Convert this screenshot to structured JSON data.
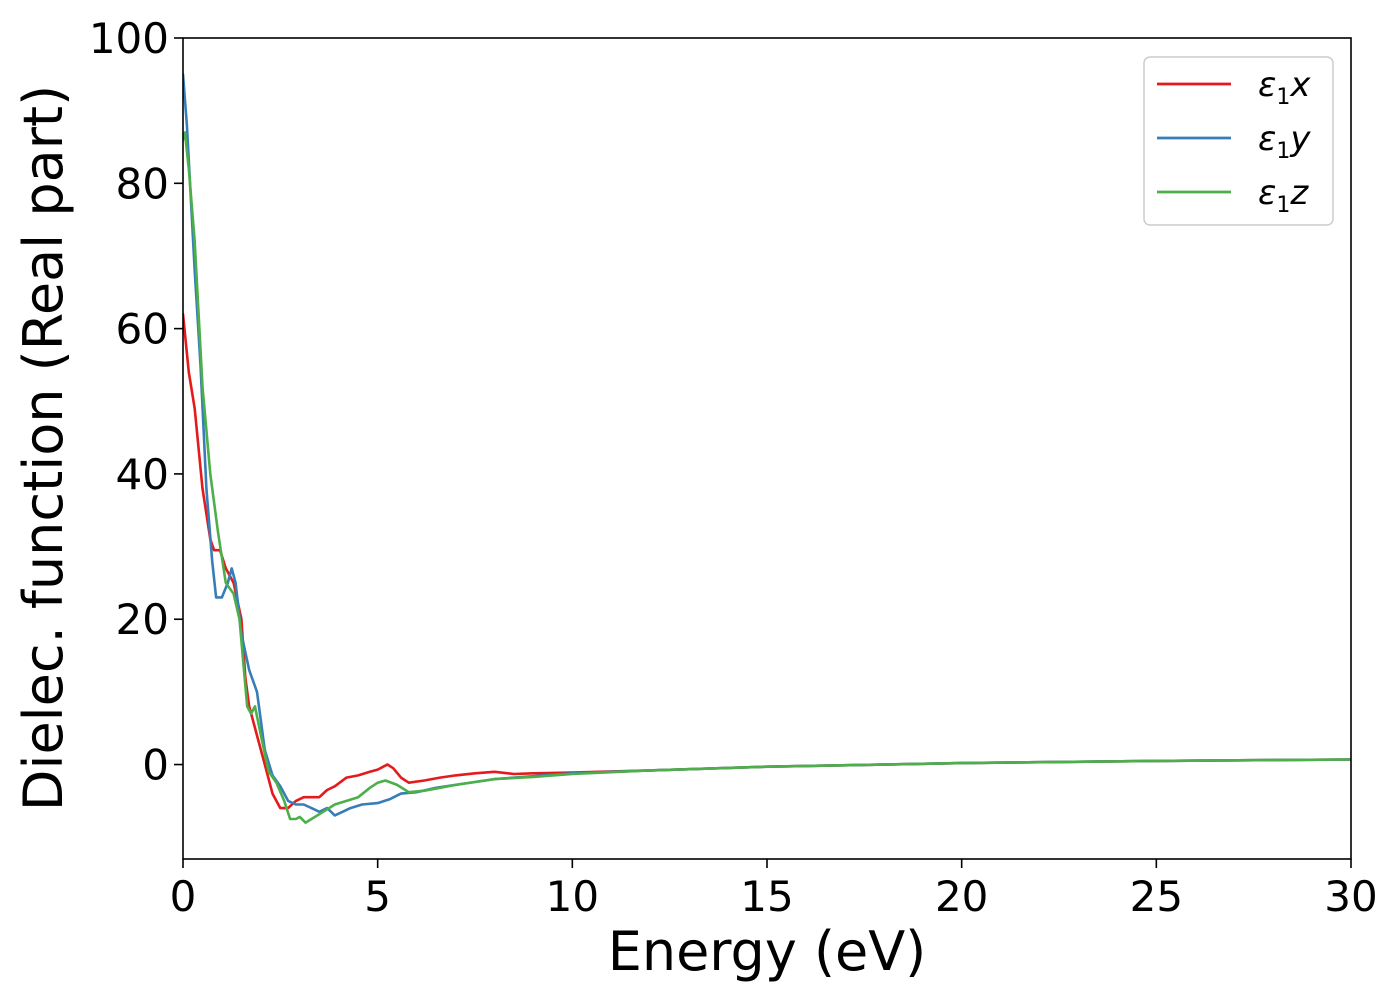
{
  "chart_data": {
    "type": "line",
    "xlabel": "Energy (eV)",
    "ylabel": "Dielec. function (Real part)",
    "xlim": [
      0,
      30
    ],
    "ylim": [
      -13,
      100
    ],
    "x_ticks": [
      0,
      5,
      10,
      15,
      20,
      25,
      30
    ],
    "y_ticks": [
      0,
      20,
      40,
      60,
      80,
      100
    ],
    "grid": false,
    "legend_position": "top-right",
    "series": [
      {
        "name": "ε1x",
        "label_base": "ε",
        "label_sub": "1",
        "label_var": "x",
        "color": "#e41a1c",
        "points": [
          [
            0,
            62
          ],
          [
            0.15,
            54
          ],
          [
            0.3,
            49
          ],
          [
            0.5,
            38
          ],
          [
            0.7,
            31
          ],
          [
            0.8,
            29.5
          ],
          [
            0.95,
            29.5
          ],
          [
            1.1,
            27
          ],
          [
            1.3,
            25
          ],
          [
            1.5,
            20
          ],
          [
            1.6,
            12
          ],
          [
            1.7,
            8
          ],
          [
            1.9,
            4
          ],
          [
            2.1,
            0
          ],
          [
            2.3,
            -4
          ],
          [
            2.5,
            -6
          ],
          [
            2.7,
            -6
          ],
          [
            2.9,
            -5
          ],
          [
            3.1,
            -4.5
          ],
          [
            3.3,
            -4.5
          ],
          [
            3.5,
            -4.5
          ],
          [
            3.7,
            -3.5
          ],
          [
            3.9,
            -3
          ],
          [
            4.2,
            -1.8
          ],
          [
            4.5,
            -1.5
          ],
          [
            4.8,
            -1
          ],
          [
            5.0,
            -0.7
          ],
          [
            5.25,
            0
          ],
          [
            5.4,
            -0.5
          ],
          [
            5.6,
            -1.8
          ],
          [
            5.8,
            -2.5
          ],
          [
            6.2,
            -2.2
          ],
          [
            6.6,
            -1.8
          ],
          [
            7,
            -1.5
          ],
          [
            7.5,
            -1.2
          ],
          [
            8,
            -1
          ],
          [
            8.5,
            -1.3
          ],
          [
            9,
            -1.2
          ],
          [
            10,
            -1.1
          ],
          [
            12,
            -0.8
          ],
          [
            15,
            -0.3
          ],
          [
            20,
            0.2
          ],
          [
            25,
            0.5
          ],
          [
            30,
            0.7
          ]
        ]
      },
      {
        "name": "ε1y",
        "label_base": "ε",
        "label_sub": "1",
        "label_var": "y",
        "color": "#377eb8",
        "points": [
          [
            0,
            95
          ],
          [
            0.1,
            88
          ],
          [
            0.2,
            78
          ],
          [
            0.3,
            68
          ],
          [
            0.45,
            55
          ],
          [
            0.6,
            38
          ],
          [
            0.75,
            28
          ],
          [
            0.85,
            23
          ],
          [
            1.0,
            23
          ],
          [
            1.15,
            25
          ],
          [
            1.25,
            27
          ],
          [
            1.35,
            25
          ],
          [
            1.5,
            18
          ],
          [
            1.7,
            13
          ],
          [
            1.9,
            10
          ],
          [
            2.1,
            2
          ],
          [
            2.3,
            -1.5
          ],
          [
            2.5,
            -3
          ],
          [
            2.7,
            -5
          ],
          [
            2.9,
            -5.5
          ],
          [
            3.1,
            -5.5
          ],
          [
            3.3,
            -6
          ],
          [
            3.5,
            -6.5
          ],
          [
            3.7,
            -6
          ],
          [
            3.9,
            -7
          ],
          [
            4.1,
            -6.5
          ],
          [
            4.3,
            -6
          ],
          [
            4.6,
            -5.5
          ],
          [
            5,
            -5.3
          ],
          [
            5.3,
            -4.8
          ],
          [
            5.6,
            -4
          ],
          [
            6,
            -3.8
          ],
          [
            6.5,
            -3.2
          ],
          [
            7,
            -2.8
          ],
          [
            7.5,
            -2.4
          ],
          [
            8,
            -2
          ],
          [
            9,
            -1.6
          ],
          [
            10,
            -1.2
          ],
          [
            12,
            -0.8
          ],
          [
            15,
            -0.3
          ],
          [
            20,
            0.2
          ],
          [
            25,
            0.5
          ],
          [
            30,
            0.7
          ]
        ]
      },
      {
        "name": "ε1z",
        "label_base": "ε",
        "label_sub": "1",
        "label_var": "z",
        "color": "#4daf4a",
        "points": [
          [
            0,
            86
          ],
          [
            0.05,
            87
          ],
          [
            0.15,
            82
          ],
          [
            0.3,
            72
          ],
          [
            0.5,
            52
          ],
          [
            0.7,
            40
          ],
          [
            0.9,
            32
          ],
          [
            1.1,
            25
          ],
          [
            1.3,
            23.5
          ],
          [
            1.45,
            20
          ],
          [
            1.55,
            14
          ],
          [
            1.65,
            8
          ],
          [
            1.75,
            7
          ],
          [
            1.85,
            8
          ],
          [
            2.0,
            4
          ],
          [
            2.2,
            -1
          ],
          [
            2.4,
            -2.5
          ],
          [
            2.6,
            -5
          ],
          [
            2.75,
            -7.5
          ],
          [
            2.9,
            -7.5
          ],
          [
            3.0,
            -7.2
          ],
          [
            3.15,
            -8
          ],
          [
            3.3,
            -7.5
          ],
          [
            3.6,
            -6.5
          ],
          [
            3.9,
            -5.5
          ],
          [
            4.2,
            -5
          ],
          [
            4.5,
            -4.5
          ],
          [
            4.8,
            -3.2
          ],
          [
            5.0,
            -2.5
          ],
          [
            5.2,
            -2.2
          ],
          [
            5.5,
            -2.8
          ],
          [
            5.8,
            -3.8
          ],
          [
            6.2,
            -3.6
          ],
          [
            6.6,
            -3.2
          ],
          [
            7,
            -2.8
          ],
          [
            7.5,
            -2.4
          ],
          [
            8,
            -2
          ],
          [
            9,
            -1.7
          ],
          [
            10,
            -1.3
          ],
          [
            12,
            -0.8
          ],
          [
            15,
            -0.3
          ],
          [
            20,
            0.2
          ],
          [
            25,
            0.5
          ],
          [
            30,
            0.7
          ]
        ]
      }
    ]
  }
}
